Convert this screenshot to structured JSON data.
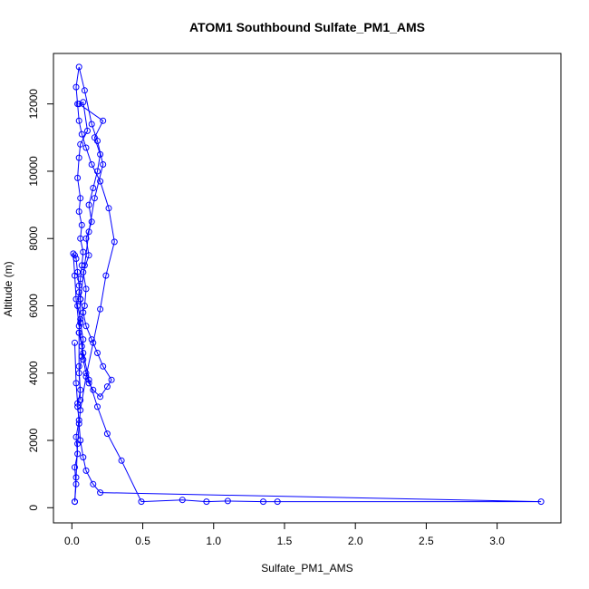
{
  "chart_data": {
    "type": "line",
    "title": "ATOM1 Southbound Sulfate_PM1_AMS",
    "xlabel": "Sulfate_PM1_AMS",
    "ylabel": "Altitude (m)",
    "xlim": [
      -0.13,
      3.45
    ],
    "ylim": [
      -450,
      13500
    ],
    "x_ticks": [
      0.0,
      0.5,
      1.0,
      1.5,
      2.0,
      2.5,
      3.0
    ],
    "x_tick_labels": [
      "0.0",
      "0.5",
      "1.0",
      "1.5",
      "2.0",
      "2.5",
      "3.0"
    ],
    "y_ticks": [
      0,
      2000,
      4000,
      6000,
      8000,
      10000,
      12000
    ],
    "y_tick_labels": [
      "0",
      "2000",
      "4000",
      "6000",
      "8000",
      "10000",
      "12000"
    ],
    "grid": false,
    "legend": "none",
    "series_color": "#0000ff",
    "series": [
      {
        "x": [
          0.02,
          0.03,
          0.02,
          0.04,
          0.03,
          0.05,
          0.04,
          0.06,
          0.05,
          0.07,
          0.08,
          0.06,
          0.09,
          0.1,
          0.08,
          0.12,
          0.1,
          0.14,
          0.12,
          0.15,
          0.18,
          0.2,
          0.16,
          0.22,
          0.05,
          0.08,
          0.11,
          0.06,
          0.05,
          0.04,
          0.06,
          0.05,
          0.07,
          0.06,
          0.08,
          0.07,
          0.06,
          0.05,
          0.04,
          0.06,
          0.05,
          0.07,
          0.08,
          0.1,
          0.12,
          0.15,
          0.2,
          0.25,
          0.28,
          0.22,
          0.18,
          0.14,
          0.1,
          0.08,
          0.06,
          0.05,
          0.04,
          0.03,
          0.02,
          0.01,
          0.02,
          0.03,
          0.05,
          0.08,
          0.12,
          0.18,
          0.25,
          0.35,
          0.49,
          0.78,
          0.95,
          1.1,
          1.35,
          1.45,
          3.31,
          0.2,
          0.15,
          0.1,
          0.08,
          0.06,
          0.05,
          0.04,
          0.03,
          0.02
        ],
        "y": [
          180,
          700,
          1200,
          1600,
          2100,
          2600,
          3000,
          3500,
          4000,
          4500,
          5000,
          5500,
          6000,
          6500,
          7000,
          7500,
          8000,
          8500,
          9000,
          9500,
          10000,
          10500,
          11000,
          11500,
          12000,
          12050,
          11200,
          10800,
          10400,
          9800,
          9200,
          8800,
          8400,
          8000,
          7600,
          7200,
          6800,
          6400,
          6000,
          5600,
          5200,
          4800,
          4400,
          4000,
          3700,
          3500,
          3300,
          3600,
          3800,
          4200,
          4600,
          5000,
          5400,
          5800,
          6200,
          6600,
          7000,
          7400,
          7500,
          7550,
          6900,
          6200,
          5400,
          4600,
          3800,
          3000,
          2200,
          1400,
          180,
          230,
          180,
          200,
          180,
          180,
          180,
          450,
          700,
          1100,
          1500,
          2000,
          2500,
          3100,
          3700,
          4900
        ]
      },
      {
        "x": [
          0.02,
          0.03,
          0.04,
          0.06,
          0.1,
          0.15,
          0.2,
          0.24,
          0.3,
          0.26,
          0.2,
          0.14,
          0.1,
          0.07,
          0.05,
          0.04,
          0.03,
          0.05,
          0.09,
          0.14,
          0.18,
          0.22,
          0.16,
          0.12,
          0.09,
          0.06,
          0.05,
          0.05,
          0.06
        ],
        "y": [
          180,
          900,
          1900,
          2900,
          3900,
          4900,
          5900,
          6900,
          7900,
          8900,
          9700,
          10200,
          10700,
          11100,
          11500,
          12000,
          12500,
          13100,
          12400,
          11400,
          10900,
          10200,
          9200,
          8200,
          7200,
          6200,
          5200,
          4200,
          3200
        ]
      }
    ]
  }
}
